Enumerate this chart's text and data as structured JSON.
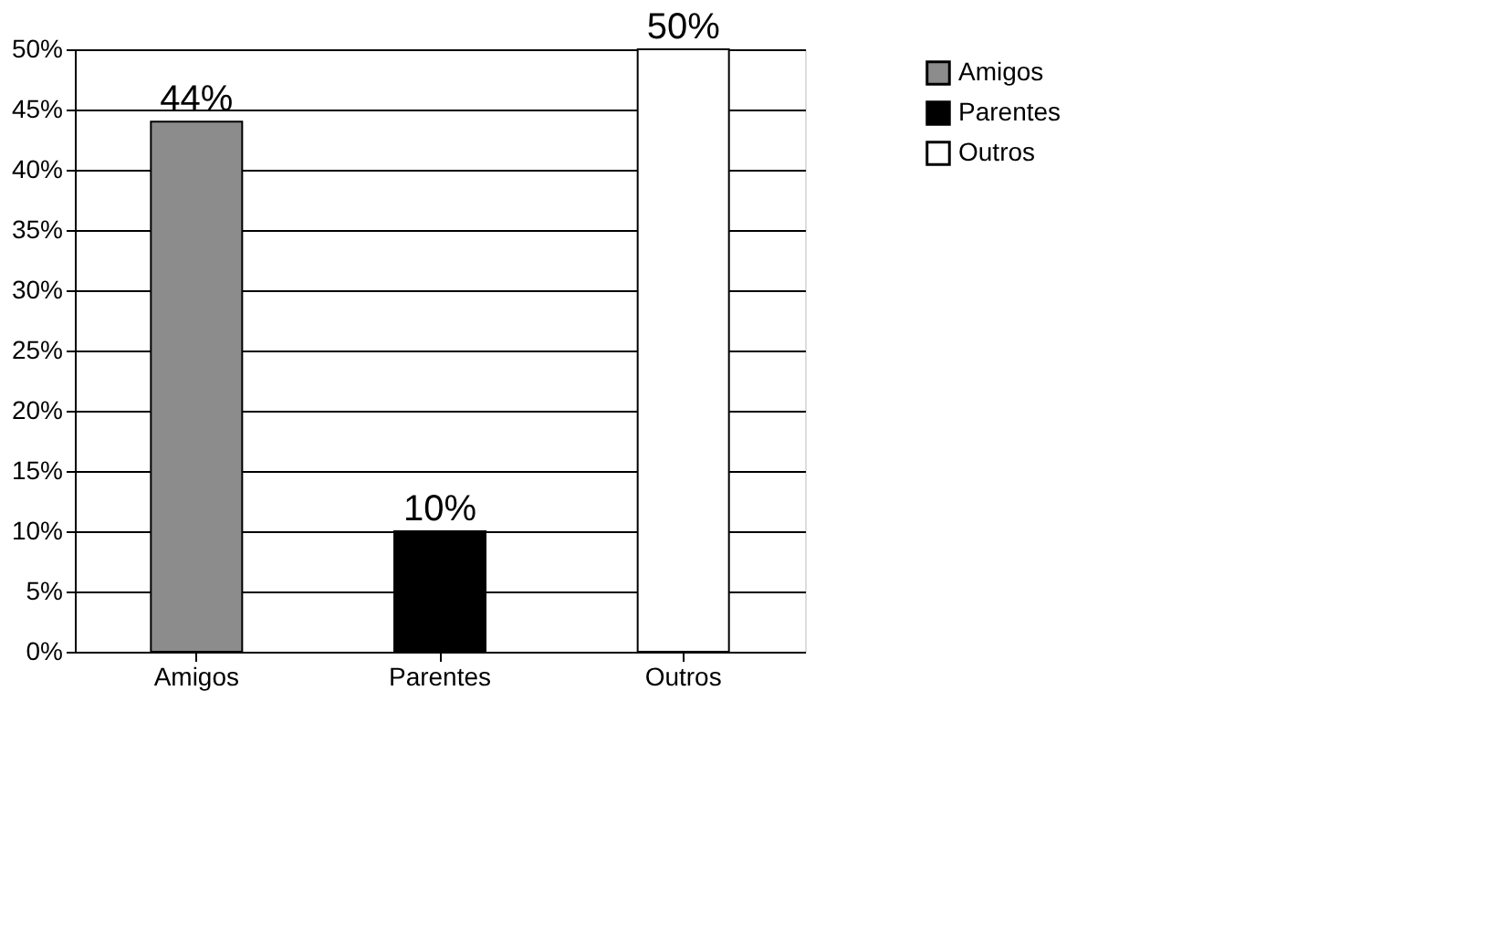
{
  "chart_data": {
    "type": "bar",
    "categories": [
      "Amigos",
      "Parentes",
      "Outros"
    ],
    "series": [
      {
        "name": "Amigos",
        "color": "#8c8c8c",
        "values": [
          44,
          null,
          null
        ],
        "value_labels": [
          "44%",
          null,
          null
        ]
      },
      {
        "name": "Parentes",
        "color": "#000000",
        "values": [
          null,
          10,
          null
        ],
        "value_labels": [
          null,
          "10%",
          null
        ]
      },
      {
        "name": "Outros",
        "color": "#ffffff",
        "values": [
          null,
          null,
          50
        ],
        "value_labels": [
          null,
          null,
          "50%"
        ]
      }
    ],
    "ylim": [
      0,
      50
    ],
    "yticks": [
      {
        "value": 0,
        "label": "0%"
      },
      {
        "value": 5,
        "label": "5%"
      },
      {
        "value": 10,
        "label": "10%"
      },
      {
        "value": 15,
        "label": "15%"
      },
      {
        "value": 20,
        "label": "20%"
      },
      {
        "value": 25,
        "label": "25%"
      },
      {
        "value": 30,
        "label": "30%"
      },
      {
        "value": 35,
        "label": "35%"
      },
      {
        "value": 40,
        "label": "40%"
      },
      {
        "value": 45,
        "label": "45%"
      },
      {
        "value": 50,
        "label": "50%"
      }
    ],
    "grid": "y",
    "legend": "right"
  }
}
